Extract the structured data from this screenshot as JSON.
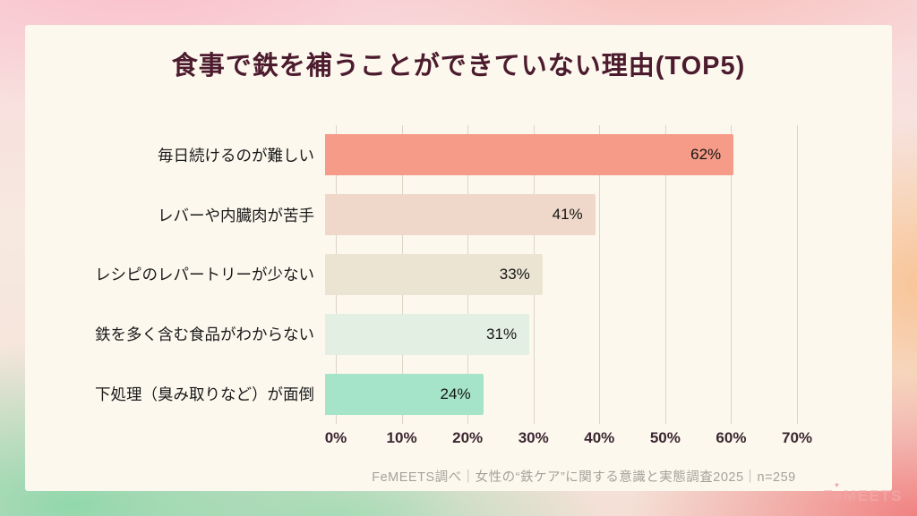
{
  "title": "食事で鉄を補うことができていない理由(TOP5)",
  "chart_data": {
    "type": "bar",
    "orientation": "horizontal",
    "title": "食事で鉄を補うことができていない理由(TOP5)",
    "categories": [
      "毎日続けるのが難しい",
      "レバーや内臓肉が苦手",
      "レシピのレパートリーが少ない",
      "鉄を多く含む食品がわからない",
      "下処理（臭み取りなど）が面倒"
    ],
    "values": [
      62,
      41,
      33,
      31,
      24
    ],
    "value_labels": [
      "62%",
      "41%",
      "33%",
      "31%",
      "24%"
    ],
    "bar_colors": [
      "#F59B87",
      "#EFD8C9",
      "#EBE4D2",
      "#E3EFE2",
      "#A5E4C8"
    ],
    "xlim": [
      0,
      70
    ],
    "xticks": [
      0,
      10,
      20,
      30,
      40,
      50,
      60,
      70
    ],
    "xtick_labels": [
      "0%",
      "10%",
      "20%",
      "30%",
      "40%",
      "50%",
      "60%",
      "70%"
    ],
    "grid": true,
    "legend": false
  },
  "footer": {
    "source": "FeMEETS調べ｜女性の“鉄ケア”に関する意識と実態調査2025｜n=259"
  },
  "logo": {
    "text": "FeMEETS",
    "accent": "♥"
  },
  "colors": {
    "card_background": "#FCF8EE",
    "title_text": "#4C1B2E",
    "bar_label_text": "#141414",
    "axis_text": "#3C2631",
    "gridline": "#DBD5C6",
    "footer_text": "#A6A29A",
    "logo_text": "#F2A3A3"
  }
}
